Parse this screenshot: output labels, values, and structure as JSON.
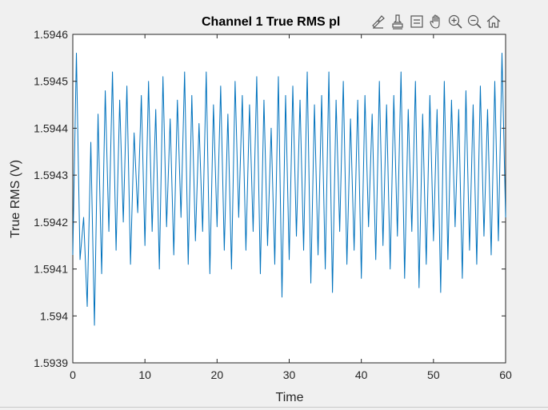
{
  "window": {
    "background": "#f0f0f0"
  },
  "chart_data": {
    "type": "line",
    "title": "Channel 1 True RMS pl",
    "xlabel": "Time",
    "ylabel": "True RMS (V)",
    "xlim": [
      0,
      60
    ],
    "ylim": [
      1.5939,
      1.5946
    ],
    "xticks": [
      0,
      10,
      20,
      30,
      40,
      50,
      60
    ],
    "xtick_labels": [
      "0",
      "10",
      "20",
      "30",
      "40",
      "50",
      "60"
    ],
    "yticks": [
      1.5939,
      1.594,
      1.5941,
      1.5942,
      1.5943,
      1.5944,
      1.5945,
      1.5946
    ],
    "ytick_labels": [
      "1.5939",
      "1.594",
      "1.5941",
      "1.5942",
      "1.5943",
      "1.5944",
      "1.5945",
      "1.5946"
    ],
    "grid": false,
    "series": [
      {
        "color": "#0072bd",
        "x": [
          0.0,
          0.5,
          1.0,
          1.5,
          2.0,
          2.5,
          3.0,
          3.5,
          4.0,
          4.5,
          5.0,
          5.5,
          6.0,
          6.5,
          7.0,
          7.5,
          8.0,
          8.5,
          9.0,
          9.5,
          10.0,
          10.5,
          11.0,
          11.5,
          12.0,
          12.5,
          13.0,
          13.5,
          14.0,
          14.5,
          15.0,
          15.5,
          16.0,
          16.5,
          17.0,
          17.5,
          18.0,
          18.5,
          19.0,
          19.5,
          20.0,
          20.5,
          21.0,
          21.5,
          22.0,
          22.5,
          23.0,
          23.5,
          24.0,
          24.5,
          25.0,
          25.5,
          26.0,
          26.5,
          27.0,
          27.5,
          28.0,
          28.5,
          29.0,
          29.5,
          30.0,
          30.5,
          31.0,
          31.5,
          32.0,
          32.5,
          33.0,
          33.5,
          34.0,
          34.5,
          35.0,
          35.5,
          36.0,
          36.5,
          37.0,
          37.5,
          38.0,
          38.5,
          39.0,
          39.5,
          40.0,
          40.5,
          41.0,
          41.5,
          42.0,
          42.5,
          43.0,
          43.5,
          44.0,
          44.5,
          45.0,
          45.5,
          46.0,
          46.5,
          47.0,
          47.5,
          48.0,
          48.5,
          49.0,
          49.5,
          50.0,
          50.5,
          51.0,
          51.5,
          52.0,
          52.5,
          53.0,
          53.5,
          54.0,
          54.5,
          55.0,
          55.5,
          56.0,
          56.5,
          57.0,
          57.5,
          58.0,
          58.5,
          59.0,
          59.5,
          60.0
        ],
        "y": [
          1.59413,
          1.59456,
          1.59412,
          1.59421,
          1.59402,
          1.59437,
          1.59398,
          1.59443,
          1.59409,
          1.59448,
          1.59418,
          1.59452,
          1.59414,
          1.59446,
          1.5942,
          1.59449,
          1.59411,
          1.59439,
          1.59422,
          1.59447,
          1.59415,
          1.5945,
          1.59418,
          1.59444,
          1.5941,
          1.59451,
          1.59419,
          1.59442,
          1.59413,
          1.59446,
          1.59421,
          1.59452,
          1.59411,
          1.59447,
          1.59416,
          1.59441,
          1.59418,
          1.59452,
          1.59409,
          1.59445,
          1.59419,
          1.59449,
          1.59414,
          1.59443,
          1.5941,
          1.5945,
          1.59421,
          1.59447,
          1.59414,
          1.59445,
          1.59418,
          1.59451,
          1.59409,
          1.59446,
          1.59415,
          1.5944,
          1.59411,
          1.59451,
          1.59404,
          1.59447,
          1.59412,
          1.59449,
          1.59417,
          1.59446,
          1.59414,
          1.59452,
          1.59407,
          1.59445,
          1.59413,
          1.59447,
          1.5941,
          1.59452,
          1.59405,
          1.59446,
          1.59418,
          1.5945,
          1.59411,
          1.59442,
          1.59414,
          1.59446,
          1.59408,
          1.59447,
          1.59419,
          1.59443,
          1.59412,
          1.5945,
          1.59415,
          1.59445,
          1.5941,
          1.59447,
          1.59417,
          1.59452,
          1.59408,
          1.59444,
          1.59418,
          1.5945,
          1.59406,
          1.59443,
          1.59411,
          1.59447,
          1.59416,
          1.59444,
          1.59405,
          1.5945,
          1.59412,
          1.59446,
          1.59419,
          1.59444,
          1.59408,
          1.59448,
          1.59414,
          1.59445,
          1.59411,
          1.59449,
          1.59417,
          1.59444,
          1.59413,
          1.5945,
          1.59416,
          1.59456,
          1.59421
        ]
      }
    ]
  },
  "toolbar": {
    "items": [
      {
        "name": "brush-icon"
      },
      {
        "name": "export-icon"
      },
      {
        "name": "datatip-icon"
      },
      {
        "name": "pan-icon"
      },
      {
        "name": "zoom-in-icon"
      },
      {
        "name": "zoom-out-icon"
      },
      {
        "name": "home-icon"
      }
    ]
  }
}
